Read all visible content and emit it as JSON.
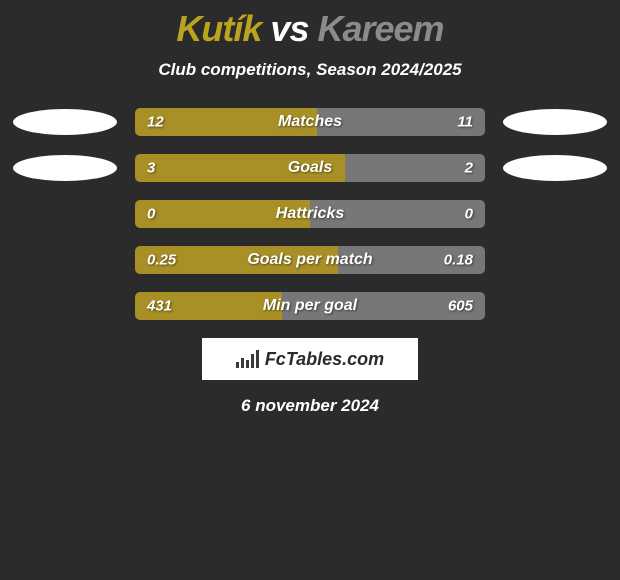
{
  "title": {
    "player1": "Kutík",
    "vs": "vs",
    "player2": "Kareem",
    "player1_color": "#baa31e",
    "vs_color": "#ffffff",
    "player2_color": "#8b8b8b",
    "fontsize": 36
  },
  "subtitle": "Club competitions, Season 2024/2025",
  "colors": {
    "background": "#2b2b2b",
    "left_fill": "#a89026",
    "right_fill": "#777777",
    "text": "#ffffff",
    "avatar": "#ffffff"
  },
  "bar": {
    "track_width": 350,
    "track_height": 28,
    "border_radius": 5
  },
  "stats": [
    {
      "label": "Matches",
      "left_val": "12",
      "right_val": "11",
      "left_pct": 52,
      "right_pct": 48,
      "show_avatar": true
    },
    {
      "label": "Goals",
      "left_val": "3",
      "right_val": "2",
      "left_pct": 60,
      "right_pct": 40,
      "show_avatar": true
    },
    {
      "label": "Hattricks",
      "left_val": "0",
      "right_val": "0",
      "left_pct": 50,
      "right_pct": 50,
      "show_avatar": false
    },
    {
      "label": "Goals per match",
      "left_val": "0.25",
      "right_val": "0.18",
      "left_pct": 58,
      "right_pct": 42,
      "show_avatar": false
    },
    {
      "label": "Min per goal",
      "left_val": "431",
      "right_val": "605",
      "left_pct": 42,
      "right_pct": 58,
      "show_avatar": false
    }
  ],
  "brand": "FcTables.com",
  "date": "6 november 2024"
}
